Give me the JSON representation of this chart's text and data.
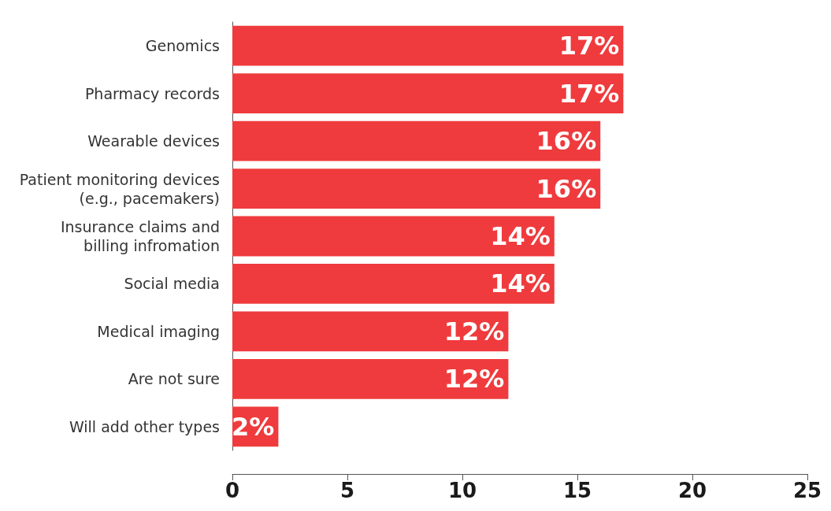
{
  "chart_data": {
    "type": "bar",
    "orientation": "horizontal",
    "categories": [
      "Genomics",
      "Pharmacy records",
      "Wearable devices",
      "Patient monitoring devices\n(e.g., pacemakers)",
      "Insurance claims and\nbilling infromation",
      "Social media",
      "Medical imaging",
      "Are not sure",
      "Will add other types"
    ],
    "values": [
      17,
      17,
      16,
      16,
      14,
      14,
      12,
      12,
      2
    ],
    "value_labels": [
      "17%",
      "17%",
      "16%",
      "16%",
      "14%",
      "14%",
      "12%",
      "12%",
      "2%"
    ],
    "color": "#ef3b3d",
    "xlim": [
      0,
      25
    ],
    "xticks": [
      0,
      5,
      10,
      15,
      20,
      25
    ],
    "grid": false
  }
}
